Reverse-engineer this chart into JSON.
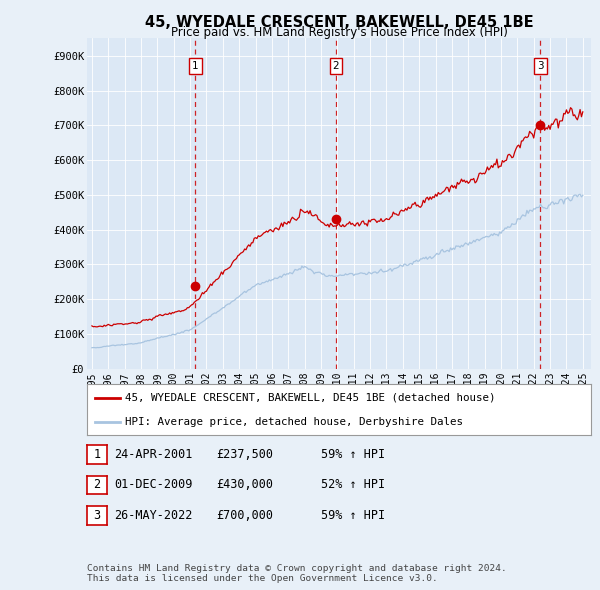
{
  "title": "45, WYEDALE CRESCENT, BAKEWELL, DE45 1BE",
  "subtitle": "Price paid vs. HM Land Registry's House Price Index (HPI)",
  "bg_color": "#e8f0f8",
  "plot_bg_color": "#dce8f5",
  "ylim": [
    0,
    950000
  ],
  "yticks": [
    0,
    100000,
    200000,
    300000,
    400000,
    500000,
    600000,
    700000,
    800000,
    900000
  ],
  "ytick_labels": [
    "£0",
    "£100K",
    "£200K",
    "£300K",
    "£400K",
    "£500K",
    "£600K",
    "£700K",
    "£800K",
    "£900K"
  ],
  "xlabel_years": [
    "1995",
    "1996",
    "1997",
    "1998",
    "1999",
    "2000",
    "2001",
    "2002",
    "2003",
    "2004",
    "2005",
    "2006",
    "2007",
    "2008",
    "2009",
    "2010",
    "2011",
    "2012",
    "2013",
    "2014",
    "2015",
    "2016",
    "2017",
    "2018",
    "2019",
    "2020",
    "2021",
    "2022",
    "2023",
    "2024",
    "2025"
  ],
  "sale_dates": [
    2001.31,
    2009.92,
    2022.4
  ],
  "sale_prices": [
    237500,
    430000,
    700000
  ],
  "sale_labels": [
    "1",
    "2",
    "3"
  ],
  "vline_color": "#cc0000",
  "sale_marker_color": "#cc0000",
  "hpi_line_color": "#a8c4e0",
  "price_line_color": "#cc0000",
  "legend_entry1": "45, WYEDALE CRESCENT, BAKEWELL, DE45 1BE (detached house)",
  "legend_entry2": "HPI: Average price, detached house, Derbyshire Dales",
  "footer_text": "Contains HM Land Registry data © Crown copyright and database right 2024.\nThis data is licensed under the Open Government Licence v3.0.",
  "table_rows": [
    [
      "1",
      "24-APR-2001",
      "£237,500",
      "59% ↑ HPI"
    ],
    [
      "2",
      "01-DEC-2009",
      "£430,000",
      "52% ↑ HPI"
    ],
    [
      "3",
      "26-MAY-2022",
      "£700,000",
      "59% ↑ HPI"
    ]
  ]
}
